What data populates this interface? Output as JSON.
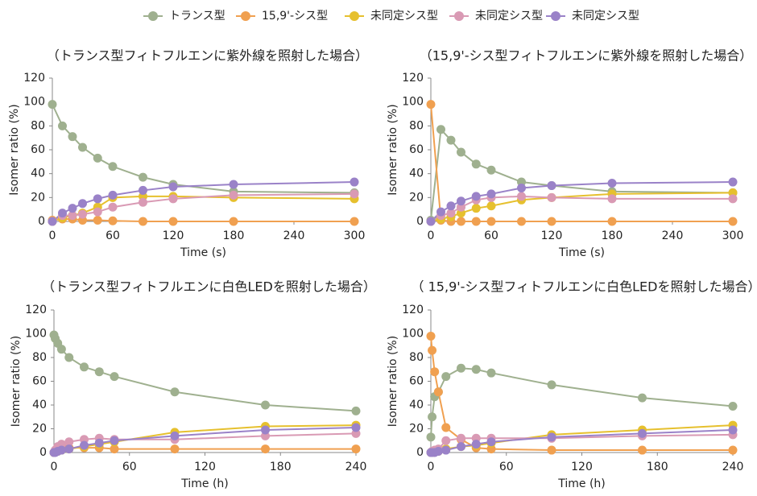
{
  "legend": {
    "series": [
      {
        "name": "トランス型",
        "color": "#9fb08f"
      },
      {
        "name": "15,9'-シス型",
        "color": "#f0a050"
      },
      {
        "name": "未同定シス型",
        "color": "#e6c02e"
      },
      {
        "name": "未同定シス型",
        "color": "#d99ab4"
      },
      {
        "name": "未同定シス型",
        "color": "#9a82c8"
      }
    ]
  },
  "chart_data": [
    {
      "type": "line",
      "title": "（トランス型フィトフルエンに紫外線を照射した場合）",
      "xlabel": "Time (s)",
      "ylabel": "Isomer ratio (%)",
      "x": [
        0,
        10,
        20,
        30,
        45,
        60,
        90,
        120,
        180,
        300
      ],
      "xlim": [
        0,
        300
      ],
      "xticks": [
        0,
        60,
        120,
        180,
        240,
        300
      ],
      "ylim": [
        0,
        120
      ],
      "yticks": [
        0,
        20,
        40,
        60,
        80,
        100,
        120
      ],
      "series": [
        {
          "values": [
            98,
            80,
            71,
            62,
            53,
            46,
            37,
            31,
            25,
            24
          ]
        },
        {
          "values": [
            1,
            2,
            2,
            1,
            1,
            0.5,
            0,
            0,
            0,
            0
          ]
        },
        {
          "values": [
            0,
            3,
            5,
            7,
            12,
            20,
            21,
            21,
            20,
            19
          ]
        },
        {
          "values": [
            0,
            5,
            5,
            6,
            8,
            12,
            16,
            19,
            22,
            23
          ]
        },
        {
          "values": [
            0,
            7,
            11,
            15,
            19,
            22,
            26,
            29,
            31,
            33
          ]
        }
      ]
    },
    {
      "type": "line",
      "title": "（15,9'-シス型フィトフルエンに紫外線を照射した場合）",
      "xlabel": "Time (s)",
      "ylabel": "Isomer ratio (%)",
      "x": [
        0,
        10,
        20,
        30,
        45,
        60,
        90,
        120,
        180,
        300
      ],
      "xlim": [
        0,
        300
      ],
      "xticks": [
        0,
        60,
        120,
        180,
        240,
        300
      ],
      "ylim": [
        0,
        120
      ],
      "yticks": [
        0,
        20,
        40,
        60,
        80,
        100,
        120
      ],
      "series": [
        {
          "values": [
            1,
            77,
            68,
            58,
            48,
            43,
            33,
            30,
            25,
            24
          ]
        },
        {
          "values": [
            98,
            1,
            0,
            0,
            0,
            0,
            0,
            0,
            0,
            0
          ]
        },
        {
          "values": [
            0,
            2,
            4,
            7,
            11,
            13,
            18,
            20,
            23,
            24
          ]
        },
        {
          "values": [
            0,
            5,
            7,
            12,
            18,
            20,
            21,
            20,
            19,
            19
          ]
        },
        {
          "values": [
            0,
            8,
            13,
            17,
            21,
            23,
            28,
            30,
            32,
            33
          ]
        }
      ]
    },
    {
      "type": "line",
      "title": "（トランス型フィトフルエンに白色LEDを照射した場合）",
      "xlabel": "Time (h)",
      "ylabel": "Isomer ratio (%)",
      "x": [
        0,
        1,
        3,
        6,
        12,
        24,
        36,
        48,
        96,
        168,
        240
      ],
      "xlim": [
        0,
        240
      ],
      "xticks": [
        0,
        60,
        120,
        180,
        240
      ],
      "ylim": [
        0,
        120
      ],
      "yticks": [
        0,
        20,
        40,
        60,
        80,
        100,
        120
      ],
      "series": [
        {
          "values": [
            99,
            96,
            92,
            87,
            80,
            72,
            68,
            64,
            51,
            40,
            35
          ]
        },
        {
          "values": [
            0,
            1,
            3,
            4,
            4,
            4,
            4,
            3,
            3,
            3,
            3
          ]
        },
        {
          "values": [
            0,
            1,
            1,
            2,
            3,
            5,
            7,
            9,
            17,
            22,
            23
          ]
        },
        {
          "values": [
            0,
            2,
            5,
            7,
            9,
            11,
            12,
            11,
            11,
            14,
            16
          ]
        },
        {
          "values": [
            0,
            0,
            1,
            2,
            3,
            6,
            8,
            10,
            14,
            19,
            21
          ]
        }
      ]
    },
    {
      "type": "line",
      "title": "（ 15,9'-シス型フィトフルエンに白色LEDを照射した場合）",
      "xlabel": "Time (h)",
      "ylabel": "Isomer ratio (%)",
      "x": [
        0,
        1,
        3,
        6,
        12,
        24,
        36,
        48,
        96,
        168,
        240
      ],
      "xlim": [
        0,
        240
      ],
      "xticks": [
        0,
        60,
        120,
        180,
        240
      ],
      "ylim": [
        0,
        120
      ],
      "yticks": [
        0,
        20,
        40,
        60,
        80,
        100,
        120
      ],
      "series": [
        {
          "values": [
            13,
            30,
            47,
            51,
            64,
            71,
            70,
            67,
            57,
            46,
            39
          ]
        },
        {
          "values": [
            98,
            86,
            68,
            51,
            21,
            11,
            4,
            3,
            2,
            2,
            2
          ]
        },
        {
          "values": [
            0,
            0,
            1,
            1,
            3,
            5,
            6,
            8,
            15,
            19,
            23
          ]
        },
        {
          "values": [
            0,
            1,
            2,
            3,
            10,
            12,
            12,
            12,
            12,
            14,
            15
          ]
        },
        {
          "values": [
            0,
            0,
            0,
            1,
            2,
            5,
            7,
            9,
            13,
            16,
            19
          ]
        }
      ]
    }
  ]
}
